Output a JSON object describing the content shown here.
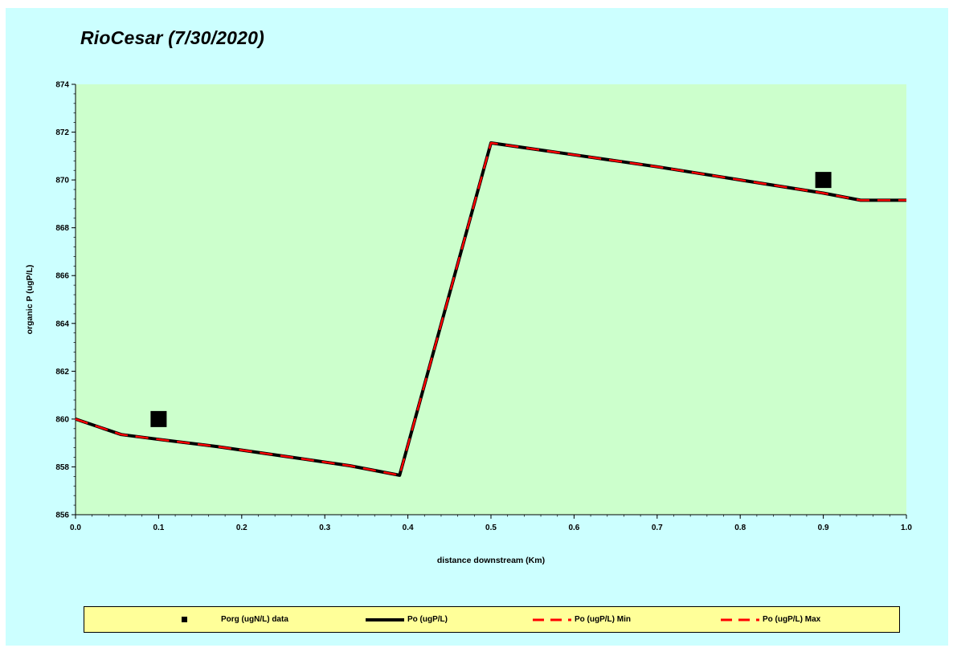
{
  "chart_data": {
    "type": "line",
    "title": "RioCesar (7/30/2020)",
    "xlabel": "distance downstream (Km)",
    "ylabel": "organic P (ugP/L)",
    "xlim": [
      0.0,
      1.0
    ],
    "ylim": [
      856,
      874
    ],
    "x_ticks": [
      "0.0",
      "0.1",
      "0.2",
      "0.3",
      "0.4",
      "0.5",
      "0.6",
      "0.7",
      "0.8",
      "0.9",
      "1.0"
    ],
    "y_ticks": [
      "856",
      "858",
      "860",
      "862",
      "864",
      "866",
      "868",
      "870",
      "872",
      "874"
    ],
    "grid": false,
    "legend_position": "bottom",
    "series": [
      {
        "name": "Porg (ugN/L) data",
        "kind": "scatter",
        "color": "#000000",
        "marker": "square",
        "x": [
          0.1,
          0.9
        ],
        "y": [
          860.0,
          870.0
        ]
      },
      {
        "name": "Po (ugP/L)",
        "kind": "line",
        "color": "#000000",
        "style": "solid",
        "x": [
          0.0,
          0.055,
          0.1,
          0.17,
          0.25,
          0.33,
          0.39,
          0.5,
          0.6,
          0.7,
          0.8,
          0.9,
          0.945,
          1.0
        ],
        "y": [
          860.0,
          859.35,
          859.15,
          858.85,
          858.45,
          858.05,
          857.65,
          871.55,
          871.05,
          870.55,
          870.0,
          869.45,
          869.15,
          869.15
        ]
      },
      {
        "name": "Po (ugP/L) Min",
        "kind": "line",
        "color": "#ff0000",
        "style": "dashed",
        "x": [
          0.0,
          0.055,
          0.1,
          0.17,
          0.25,
          0.33,
          0.39,
          0.5,
          0.6,
          0.7,
          0.8,
          0.9,
          0.945,
          1.0
        ],
        "y": [
          860.0,
          859.35,
          859.15,
          858.85,
          858.45,
          858.05,
          857.65,
          871.55,
          871.05,
          870.55,
          870.0,
          869.45,
          869.15,
          869.15
        ]
      },
      {
        "name": "Po (ugP/L) Max",
        "kind": "line",
        "color": "#ff0000",
        "style": "dashed",
        "x": [
          0.0,
          0.055,
          0.1,
          0.17,
          0.25,
          0.33,
          0.39,
          0.5,
          0.6,
          0.7,
          0.8,
          0.9,
          0.945,
          1.0
        ],
        "y": [
          860.0,
          859.35,
          859.15,
          858.85,
          858.45,
          858.05,
          857.65,
          871.55,
          871.05,
          870.55,
          870.0,
          869.45,
          869.15,
          869.15
        ]
      }
    ],
    "colors": {
      "chart_background": "#ccffff",
      "plot_background": "#ccffcc",
      "legend_background": "#ffff99"
    }
  }
}
